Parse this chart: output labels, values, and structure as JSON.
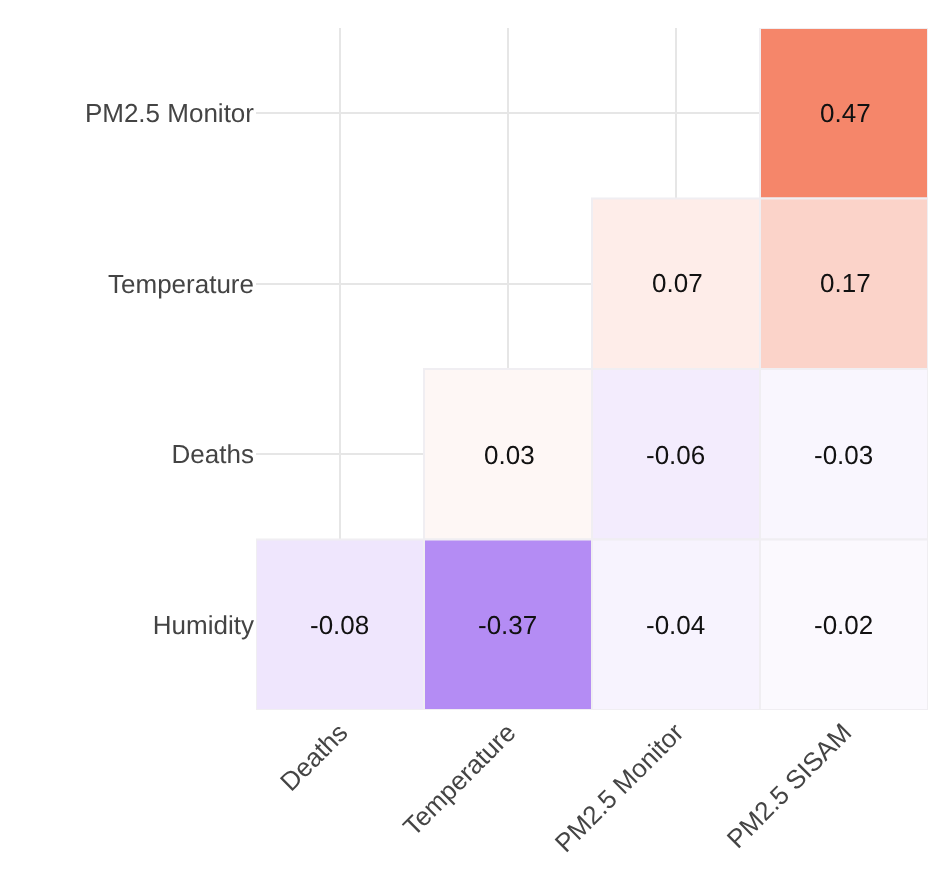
{
  "chart_data": {
    "type": "heatmap",
    "categories": [
      "Deaths",
      "Temperature",
      "PM2.5 Monitor",
      "PM2.5 SISAM"
    ],
    "y_categories": [
      "PM2.5 Monitor",
      "Temperature",
      "Deaths",
      "Humidity"
    ],
    "cells": [
      [
        null,
        null,
        null,
        0.47
      ],
      [
        null,
        null,
        0.07,
        0.17
      ],
      [
        null,
        0.03,
        -0.06,
        -0.03
      ],
      [
        -0.08,
        -0.37,
        -0.04,
        -0.02
      ]
    ],
    "data_labels": true,
    "grid": true
  }
}
